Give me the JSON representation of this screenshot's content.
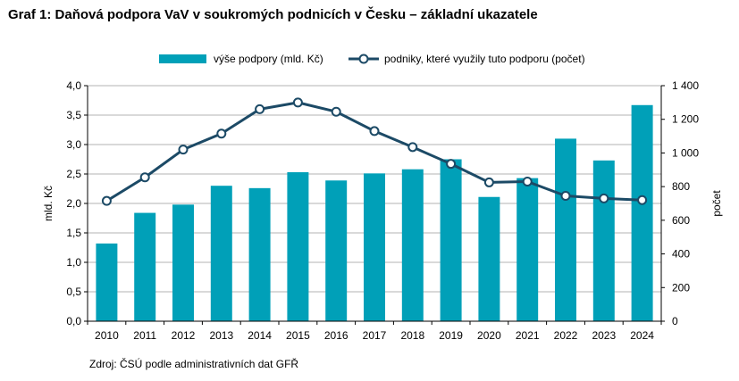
{
  "title": "Graf 1: Daňová podpora VaV v soukromých podnicích v Česku – základní ukazatele",
  "source": "Zdroj: ČSÚ podle administrativních dat GFŘ",
  "chart_data": {
    "type": "bar",
    "categories": [
      "2010",
      "2011",
      "2012",
      "2013",
      "2014",
      "2015",
      "2016",
      "2017",
      "2018",
      "2019",
      "2020",
      "2021",
      "2022",
      "2023",
      "2024"
    ],
    "series": [
      {
        "name": "výše podpory (mld. Kč)",
        "type": "bar",
        "axis": "left",
        "color": "#00a0b8",
        "values": [
          1.32,
          1.84,
          1.98,
          2.3,
          2.26,
          2.53,
          2.39,
          2.51,
          2.58,
          2.75,
          2.11,
          2.43,
          3.1,
          2.73,
          3.67
        ]
      },
      {
        "name": "podniky, které využily tuto podporu (počet)",
        "type": "line",
        "axis": "right",
        "color": "#1c4a66",
        "values": [
          715,
          855,
          1020,
          1115,
          1260,
          1300,
          1245,
          1130,
          1035,
          935,
          825,
          830,
          745,
          730,
          720
        ]
      }
    ],
    "ylabel": "mld. Kč",
    "y2label": "počet",
    "ylim": [
      0,
      4
    ],
    "y2lim": [
      0,
      1400
    ],
    "yticks": [
      "0,0",
      "0,5",
      "1,0",
      "1,5",
      "2,0",
      "2,5",
      "3,0",
      "3,5",
      "4,0"
    ],
    "y2ticks": [
      "0",
      "200",
      "400",
      "600",
      "800",
      "1 000",
      "1 200",
      "1 400"
    ],
    "grid": true,
    "legend": "top"
  }
}
